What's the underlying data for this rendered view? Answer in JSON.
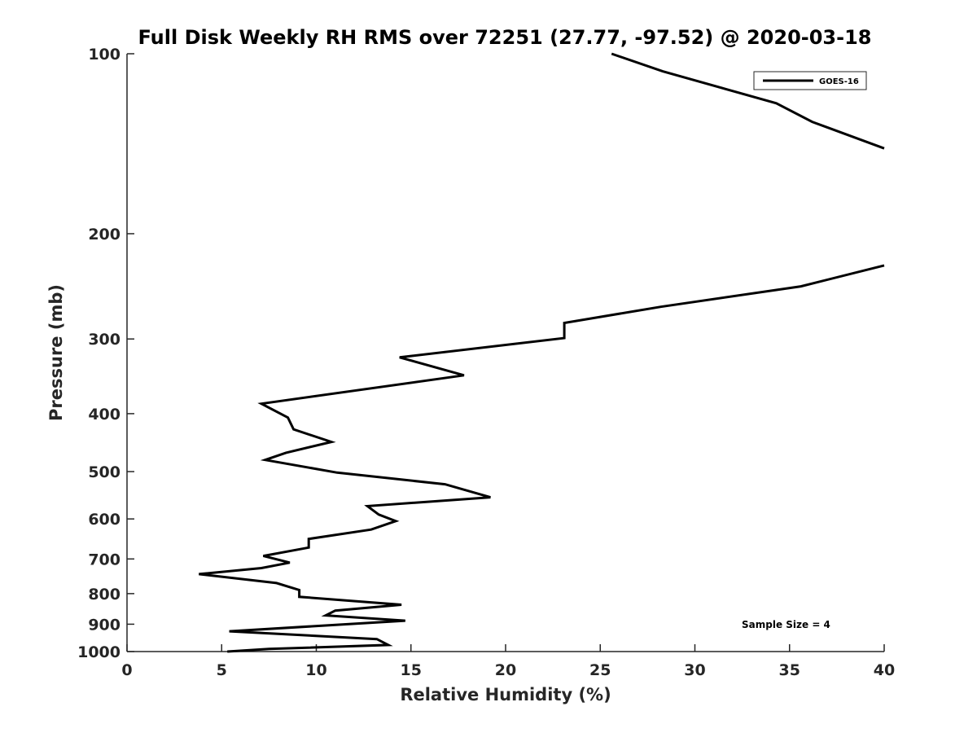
{
  "chart_data": {
    "type": "line",
    "title": "Full Disk Weekly RH RMS over 72251 (27.77, -97.52) @ 2020-03-18",
    "xlabel": "Relative Humidity (%)",
    "ylabel": "Pressure (mb)",
    "xlim": [
      0,
      40
    ],
    "ylim": [
      1000,
      100
    ],
    "y_scale": "log",
    "y_reversed": true,
    "grid": false,
    "legend_position": "top-right",
    "x_ticks": [
      "0",
      "5",
      "10",
      "15",
      "20",
      "25",
      "30",
      "35",
      "40"
    ],
    "y_ticks": [
      "100",
      "200",
      "300",
      "400",
      "500",
      "600",
      "700",
      "800",
      "900",
      "1000"
    ],
    "series_color": "#000000",
    "series": [
      {
        "name": "GOES-16",
        "segments": [
          [
            [
              25.6,
              100
            ],
            [
              28.3,
              107
            ],
            [
              34.3,
              121
            ],
            [
              36.2,
              130
            ],
            [
              40,
              144
            ]
          ],
          [
            [
              40,
              226
            ],
            [
              35.6,
              245
            ],
            [
              28.2,
              265
            ],
            [
              23.1,
              282
            ],
            [
              23.1,
              299
            ],
            [
              14.4,
              322
            ],
            [
              17.8,
              345
            ],
            [
              7.1,
              385
            ],
            [
              8.5,
              406
            ],
            [
              8.8,
              425
            ],
            [
              10.8,
              446
            ],
            [
              8.4,
              465
            ],
            [
              7.3,
              478
            ],
            [
              11.1,
              502
            ],
            [
              16.8,
              525
            ],
            [
              19.2,
              552
            ],
            [
              12.7,
              571
            ],
            [
              13.3,
              590
            ],
            [
              14.2,
              605
            ],
            [
              12.9,
              625
            ],
            [
              9.6,
              648
            ],
            [
              9.6,
              670
            ],
            [
              7.2,
              692
            ],
            [
              8.6,
              710
            ],
            [
              7.1,
              725
            ],
            [
              3.8,
              742
            ],
            [
              7.9,
              768
            ],
            [
              9.1,
              789
            ],
            [
              9.1,
              810
            ],
            [
              14.5,
              835
            ],
            [
              11.0,
              854
            ],
            [
              10.5,
              870
            ],
            [
              14.7,
              888
            ],
            [
              5.4,
              925
            ],
            [
              13.2,
              953
            ],
            [
              13.8,
              975
            ],
            [
              7.5,
              990
            ],
            [
              5.3,
              1000
            ]
          ]
        ]
      }
    ]
  },
  "legend": {
    "label": "GOES-16"
  },
  "annotation": {
    "sample_size": "Sample Size = 4"
  }
}
